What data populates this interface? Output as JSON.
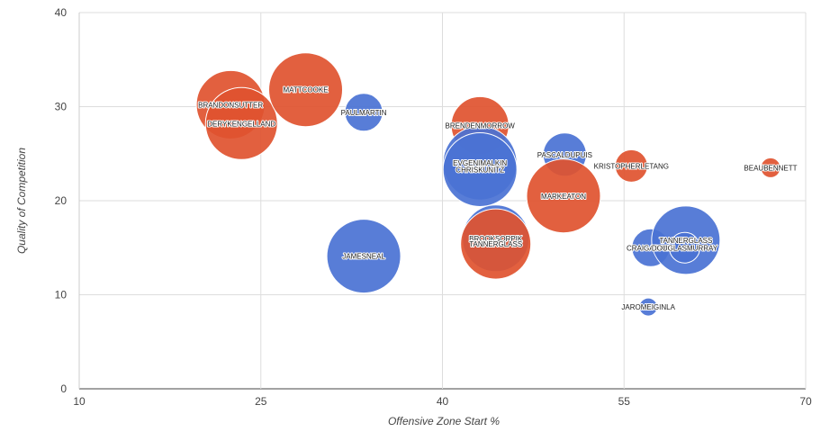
{
  "chart_data": {
    "type": "scatter",
    "variant": "bubble",
    "title": "",
    "xlabel": "Offensive Zone Start %",
    "ylabel": "Quality of Competition",
    "xlim": [
      10,
      70
    ],
    "ylim": [
      0,
      40
    ],
    "xticks": [
      "10",
      "25",
      "40",
      "55",
      "70"
    ],
    "yticks": [
      "0",
      "10",
      "20",
      "30",
      "40"
    ],
    "grid": true,
    "legend": "none",
    "colors": {
      "red": "#e0522f",
      "blue": "#4a72d4",
      "grid": "#dddddd",
      "axis": "#444444"
    },
    "points": [
      {
        "label": "BRANDONSUTTER",
        "x": 22.5,
        "y": 30.2,
        "r": 38,
        "color": "red"
      },
      {
        "label": "DERYKENGELLAND",
        "x": 23.4,
        "y": 28.2,
        "r": 40,
        "color": "red"
      },
      {
        "label": "MATTCOOKE",
        "x": 28.7,
        "y": 31.8,
        "r": 41,
        "color": "red"
      },
      {
        "label": "PAULMARTIN",
        "x": 33.5,
        "y": 29.4,
        "r": 21,
        "color": "blue"
      },
      {
        "label": "JAMESNEAL",
        "x": 33.5,
        "y": 14.1,
        "r": 41,
        "color": "blue"
      },
      {
        "label": "BRENDENMORROW",
        "x": 43.1,
        "y": 28.0,
        "r": 32,
        "color": "red"
      },
      {
        "label": "EVGENIMALKIN",
        "x": 43.1,
        "y": 24.0,
        "r": 41,
        "color": "blue"
      },
      {
        "label": "CHRISKUNITZ",
        "x": 43.1,
        "y": 23.3,
        "r": 41,
        "color": "blue"
      },
      {
        "label": "PASCALDUPUIS",
        "x": 50.1,
        "y": 24.9,
        "r": 24,
        "color": "blue"
      },
      {
        "label": "MARKEATON",
        "x": 50.0,
        "y": 20.5,
        "r": 41,
        "color": "red"
      },
      {
        "label": "KRISTOPHERLETANG",
        "x": 55.6,
        "y": 23.7,
        "r": 18,
        "color": "red"
      },
      {
        "label": "BEAUBENNETT",
        "x": 67.1,
        "y": 23.5,
        "r": 11,
        "color": "red"
      },
      {
        "label": "BROOKSORPIK",
        "x": 44.4,
        "y": 16.0,
        "r": 37,
        "color": "blue"
      },
      {
        "label": "TANNERGLASS",
        "x": 44.4,
        "y": 15.4,
        "r": 39,
        "color": "red"
      },
      {
        "label": "CRAIGADAMS",
        "x": 57.2,
        "y": 15.0,
        "r": 21,
        "color": "blue"
      },
      {
        "label": "TANNERGLASS",
        "x": 60.1,
        "y": 15.8,
        "r": 38,
        "color": "blue"
      },
      {
        "label": "DOUGLASMURRAY",
        "x": 60.0,
        "y": 15.0,
        "r": 17,
        "color": "blue"
      },
      {
        "label": "JAROMEIGINLA",
        "x": 57.0,
        "y": 8.7,
        "r": 10,
        "color": "blue"
      }
    ]
  }
}
